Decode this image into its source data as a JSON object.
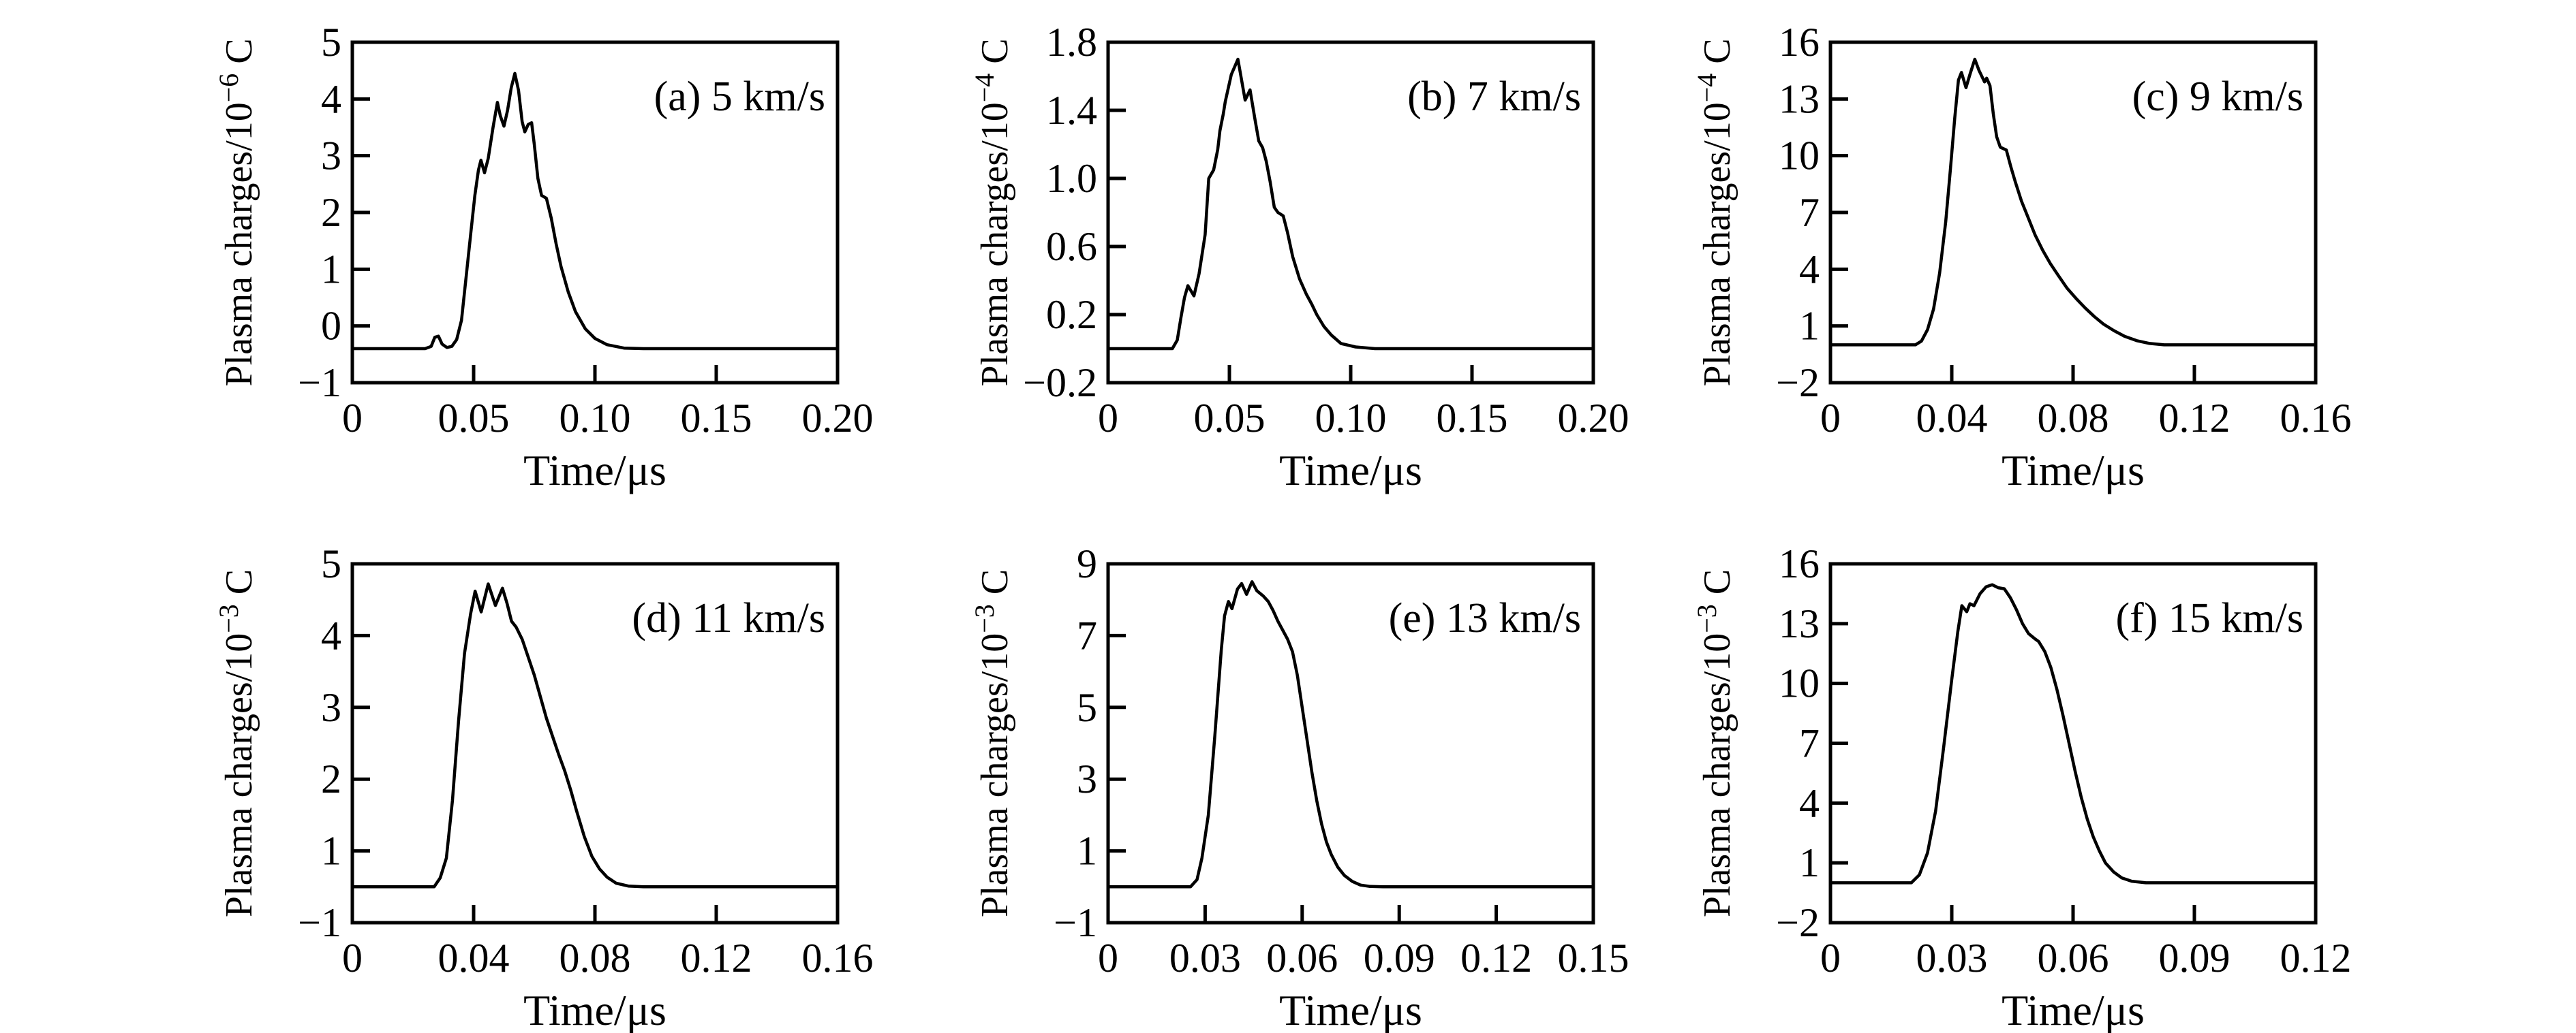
{
  "figure": {
    "background": "#ffffff",
    "ink_color": "#000000",
    "rows": 2,
    "cols": 3,
    "description": "Plasma charges versus time at six impact velocities"
  },
  "chart_data": [
    {
      "type": "line",
      "id": "a",
      "label": "(a)",
      "speed": "5 km/s",
      "title": "(a) 5 km/s",
      "ylabel_prefix": "Plasma charges/10",
      "ylabel_exponent": "−6",
      "ylabel_suffix": "C",
      "ylabel": "Plasma charges/10^−6 C",
      "xlabel": "Time/μs",
      "xlim": [
        0,
        0.2
      ],
      "ylim": [
        -1,
        5
      ],
      "grid": false,
      "legend": "none",
      "xtick_labels": [
        "0",
        "0.05",
        "0.10",
        "0.15",
        "0.20"
      ],
      "xtick_values": [
        0,
        0.05,
        0.1,
        0.15,
        0.2
      ],
      "ytick_labels": [
        "5",
        "4",
        "3",
        "2",
        "1",
        "0",
        "−1"
      ],
      "ytick_values": [
        5,
        4,
        3,
        2,
        1,
        0,
        -1
      ],
      "points": [
        [
          0,
          -0.4
        ],
        [
          0.03,
          -0.4
        ],
        [
          0.0325,
          -0.36
        ],
        [
          0.034,
          -0.2
        ],
        [
          0.0355,
          -0.18
        ],
        [
          0.037,
          -0.32
        ],
        [
          0.039,
          -0.38
        ],
        [
          0.041,
          -0.36
        ],
        [
          0.043,
          -0.24
        ],
        [
          0.045,
          0.1
        ],
        [
          0.047,
          0.9
        ],
        [
          0.049,
          1.7
        ],
        [
          0.0505,
          2.3
        ],
        [
          0.052,
          2.75
        ],
        [
          0.053,
          2.92
        ],
        [
          0.0545,
          2.7
        ],
        [
          0.056,
          2.95
        ],
        [
          0.058,
          3.5
        ],
        [
          0.0598,
          3.94
        ],
        [
          0.061,
          3.7
        ],
        [
          0.0625,
          3.52
        ],
        [
          0.064,
          3.8
        ],
        [
          0.0655,
          4.2
        ],
        [
          0.067,
          4.45
        ],
        [
          0.0685,
          4.15
        ],
        [
          0.07,
          3.6
        ],
        [
          0.0711,
          3.42
        ],
        [
          0.0725,
          3.55
        ],
        [
          0.0739,
          3.58
        ],
        [
          0.075,
          3.2
        ],
        [
          0.0765,
          2.6
        ],
        [
          0.078,
          2.3
        ],
        [
          0.08,
          2.25
        ],
        [
          0.082,
          1.9
        ],
        [
          0.084,
          1.45
        ],
        [
          0.086,
          1.05
        ],
        [
          0.089,
          0.6
        ],
        [
          0.092,
          0.25
        ],
        [
          0.096,
          -0.05
        ],
        [
          0.1,
          -0.22
        ],
        [
          0.105,
          -0.33
        ],
        [
          0.112,
          -0.39
        ],
        [
          0.12,
          -0.4
        ],
        [
          0.2,
          -0.4
        ]
      ]
    },
    {
      "type": "line",
      "id": "b",
      "label": "(b)",
      "speed": "7 km/s",
      "title": "(b) 7 km/s",
      "ylabel_prefix": "Plasma charges/10",
      "ylabel_exponent": "−4",
      "ylabel_suffix": "C",
      "ylabel": "Plasma charges/10^−4 C",
      "xlabel": "Time/μs",
      "xlim": [
        0,
        0.2
      ],
      "ylim": [
        -0.2,
        1.8
      ],
      "grid": false,
      "legend": "none",
      "xtick_labels": [
        "0",
        "0.05",
        "0.10",
        "0.15",
        "0.20"
      ],
      "xtick_values": [
        0,
        0.05,
        0.1,
        0.15,
        0.2
      ],
      "ytick_labels": [
        "1.8",
        "1.4",
        "1.0",
        "0.6",
        "0.2",
        "−0.2"
      ],
      "ytick_values": [
        1.8,
        1.4,
        1.0,
        0.6,
        0.2,
        -0.2
      ],
      "points": [
        [
          0,
          0
        ],
        [
          0.0265,
          0
        ],
        [
          0.0285,
          0.05
        ],
        [
          0.03,
          0.18
        ],
        [
          0.0315,
          0.3
        ],
        [
          0.0329,
          0.37
        ],
        [
          0.0354,
          0.31
        ],
        [
          0.0375,
          0.44
        ],
        [
          0.04,
          0.67
        ],
        [
          0.0415,
          1.0
        ],
        [
          0.0435,
          1.05
        ],
        [
          0.0452,
          1.17
        ],
        [
          0.0461,
          1.28
        ],
        [
          0.0475,
          1.38
        ],
        [
          0.0483,
          1.45
        ],
        [
          0.0508,
          1.61
        ],
        [
          0.0535,
          1.7
        ],
        [
          0.0565,
          1.46
        ],
        [
          0.0585,
          1.52
        ],
        [
          0.0605,
          1.35
        ],
        [
          0.0621,
          1.22
        ],
        [
          0.0637,
          1.18
        ],
        [
          0.0652,
          1.1
        ],
        [
          0.0668,
          0.98
        ],
        [
          0.0685,
          0.83
        ],
        [
          0.07,
          0.8
        ],
        [
          0.0722,
          0.78
        ],
        [
          0.074,
          0.68
        ],
        [
          0.0761,
          0.54
        ],
        [
          0.0789,
          0.41
        ],
        [
          0.0817,
          0.32
        ],
        [
          0.084,
          0.26
        ],
        [
          0.086,
          0.2
        ],
        [
          0.089,
          0.13
        ],
        [
          0.092,
          0.08
        ],
        [
          0.096,
          0.03
        ],
        [
          0.102,
          0.01
        ],
        [
          0.11,
          0
        ],
        [
          0.2,
          0
        ]
      ]
    },
    {
      "type": "line",
      "id": "c",
      "label": "(c)",
      "speed": "9 km/s",
      "title": "(c) 9 km/s",
      "ylabel_prefix": "Plasma charges/10",
      "ylabel_exponent": "−4",
      "ylabel_suffix": "C",
      "ylabel": "Plasma charges/10^−4 C",
      "xlabel": "Time/μs",
      "xlim": [
        0,
        0.16
      ],
      "ylim": [
        -2,
        16
      ],
      "grid": false,
      "legend": "none",
      "xtick_labels": [
        "0",
        "0.04",
        "0.08",
        "0.12",
        "0.16"
      ],
      "xtick_values": [
        0,
        0.04,
        0.08,
        0.12,
        0.16
      ],
      "ytick_labels": [
        "16",
        "13",
        "10",
        "7",
        "4",
        "1",
        "−2"
      ],
      "ytick_values": [
        16,
        13,
        10,
        7,
        4,
        1,
        -2
      ],
      "points": [
        [
          0,
          0
        ],
        [
          0.028,
          0
        ],
        [
          0.03,
          0.2
        ],
        [
          0.032,
          0.8
        ],
        [
          0.034,
          1.9
        ],
        [
          0.036,
          3.8
        ],
        [
          0.038,
          6.5
        ],
        [
          0.0395,
          9.2
        ],
        [
          0.041,
          12
        ],
        [
          0.0422,
          14
        ],
        [
          0.0432,
          14.4
        ],
        [
          0.0447,
          13.6
        ],
        [
          0.046,
          14.3
        ],
        [
          0.0476,
          15.1
        ],
        [
          0.049,
          14.5
        ],
        [
          0.0508,
          13.9
        ],
        [
          0.0515,
          14.1
        ],
        [
          0.0526,
          13.7
        ],
        [
          0.0537,
          12.2
        ],
        [
          0.0548,
          11
        ],
        [
          0.056,
          10.45
        ],
        [
          0.058,
          10.3
        ],
        [
          0.0595,
          9.4
        ],
        [
          0.061,
          8.6
        ],
        [
          0.063,
          7.6
        ],
        [
          0.065,
          6.8
        ],
        [
          0.0675,
          5.8
        ],
        [
          0.07,
          5
        ],
        [
          0.0725,
          4.3
        ],
        [
          0.075,
          3.7
        ],
        [
          0.078,
          3
        ],
        [
          0.081,
          2.45
        ],
        [
          0.084,
          1.95
        ],
        [
          0.087,
          1.5
        ],
        [
          0.09,
          1.1
        ],
        [
          0.0935,
          0.75
        ],
        [
          0.097,
          0.45
        ],
        [
          0.101,
          0.22
        ],
        [
          0.105,
          0.08
        ],
        [
          0.11,
          0
        ],
        [
          0.16,
          0
        ]
      ]
    },
    {
      "type": "line",
      "id": "d",
      "label": "(d)",
      "speed": "11 km/s",
      "title": "(d) 11 km/s",
      "ylabel_prefix": "Plasma charges/10",
      "ylabel_exponent": "−3",
      "ylabel_suffix": "C",
      "ylabel": "Plasma charges/10^−3 C",
      "xlabel": "Time/μs",
      "xlim": [
        0,
        0.16
      ],
      "ylim": [
        -1,
        5
      ],
      "grid": false,
      "legend": "none",
      "xtick_labels": [
        "0",
        "0.04",
        "0.08",
        "0.12",
        "0.16"
      ],
      "xtick_values": [
        0,
        0.04,
        0.08,
        0.12,
        0.16
      ],
      "ytick_labels": [
        "5",
        "4",
        "3",
        "2",
        "1",
        "−1"
      ],
      "ytick_values": [
        5,
        4,
        3,
        2,
        1,
        -1
      ],
      "points": [
        [
          0,
          0
        ],
        [
          0.027,
          0
        ],
        [
          0.029,
          0.25
        ],
        [
          0.031,
          0.8
        ],
        [
          0.033,
          1.7
        ],
        [
          0.035,
          2.8
        ],
        [
          0.037,
          3.75
        ],
        [
          0.039,
          4.3
        ],
        [
          0.0405,
          4.62
        ],
        [
          0.0425,
          4.33
        ],
        [
          0.0448,
          4.72
        ],
        [
          0.0472,
          4.42
        ],
        [
          0.0495,
          4.66
        ],
        [
          0.051,
          4.45
        ],
        [
          0.0525,
          4.2
        ],
        [
          0.054,
          4.12
        ],
        [
          0.056,
          3.95
        ],
        [
          0.058,
          3.7
        ],
        [
          0.06,
          3.45
        ],
        [
          0.062,
          3.15
        ],
        [
          0.064,
          2.85
        ],
        [
          0.066,
          2.6
        ],
        [
          0.068,
          2.35
        ],
        [
          0.07,
          2.12
        ],
        [
          0.072,
          1.85
        ],
        [
          0.074,
          1.55
        ],
        [
          0.0765,
          1.2
        ],
        [
          0.079,
          0.85
        ],
        [
          0.0815,
          0.5
        ],
        [
          0.084,
          0.27
        ],
        [
          0.087,
          0.1
        ],
        [
          0.091,
          0.02
        ],
        [
          0.096,
          0
        ],
        [
          0.16,
          0
        ]
      ]
    },
    {
      "type": "line",
      "id": "e",
      "label": "(e)",
      "speed": "13 km/s",
      "title": "(e) 13 km/s",
      "ylabel_prefix": "Plasma charges/10",
      "ylabel_exponent": "−3",
      "ylabel_suffix": "C",
      "ylabel": "Plasma charges/10^−3 C",
      "xlabel": "Time/μs",
      "xlim": [
        0,
        0.15
      ],
      "ylim": [
        -1,
        9
      ],
      "grid": false,
      "legend": "none",
      "xtick_labels": [
        "0",
        "0.03",
        "0.06",
        "0.09",
        "0.12",
        "0.15"
      ],
      "xtick_values": [
        0,
        0.03,
        0.06,
        0.09,
        0.12,
        0.15
      ],
      "ytick_labels": [
        "9",
        "7",
        "5",
        "3",
        "1",
        "−1"
      ],
      "ytick_values": [
        9,
        7,
        5,
        3,
        1,
        -1
      ],
      "points": [
        [
          0,
          0
        ],
        [
          0.0255,
          0
        ],
        [
          0.0275,
          0.2
        ],
        [
          0.029,
          0.8
        ],
        [
          0.031,
          2
        ],
        [
          0.033,
          4.2
        ],
        [
          0.035,
          6.6
        ],
        [
          0.036,
          7.55
        ],
        [
          0.0372,
          7.95
        ],
        [
          0.0383,
          7.75
        ],
        [
          0.04,
          8.3
        ],
        [
          0.0413,
          8.45
        ],
        [
          0.0428,
          8.15
        ],
        [
          0.0445,
          8.5
        ],
        [
          0.046,
          8.25
        ],
        [
          0.048,
          8.1
        ],
        [
          0.0495,
          7.95
        ],
        [
          0.051,
          7.7
        ],
        [
          0.0525,
          7.4
        ],
        [
          0.054,
          7.15
        ],
        [
          0.0555,
          6.9
        ],
        [
          0.057,
          6.55
        ],
        [
          0.0585,
          5.9
        ],
        [
          0.06,
          5
        ],
        [
          0.0615,
          4.1
        ],
        [
          0.063,
          3.2
        ],
        [
          0.0645,
          2.4
        ],
        [
          0.066,
          1.75
        ],
        [
          0.0675,
          1.25
        ],
        [
          0.069,
          0.9
        ],
        [
          0.071,
          0.55
        ],
        [
          0.073,
          0.32
        ],
        [
          0.0755,
          0.15
        ],
        [
          0.078,
          0.05
        ],
        [
          0.081,
          0.01
        ],
        [
          0.085,
          0
        ],
        [
          0.15,
          0
        ]
      ]
    },
    {
      "type": "line",
      "id": "f",
      "label": "(f)",
      "speed": "15 km/s",
      "title": "(f) 15 km/s",
      "ylabel_prefix": "Plasma charges/10",
      "ylabel_exponent": "−3",
      "ylabel_suffix": "C",
      "ylabel": "Plasma charges/10^−3 C",
      "xlabel": "Time/μs",
      "xlim": [
        0,
        0.12
      ],
      "ylim": [
        -2,
        16
      ],
      "grid": false,
      "legend": "none",
      "xtick_labels": [
        "0",
        "0.03",
        "0.06",
        "0.09",
        "0.12"
      ],
      "xtick_values": [
        0,
        0.03,
        0.06,
        0.09,
        0.12
      ],
      "ytick_labels": [
        "16",
        "13",
        "10",
        "7",
        "4",
        "1",
        "−2"
      ],
      "ytick_values": [
        16,
        13,
        10,
        7,
        4,
        1,
        -2
      ],
      "points": [
        [
          0,
          0
        ],
        [
          0.02,
          0
        ],
        [
          0.022,
          0.4
        ],
        [
          0.024,
          1.5
        ],
        [
          0.026,
          3.6
        ],
        [
          0.028,
          6.8
        ],
        [
          0.03,
          10.2
        ],
        [
          0.0315,
          12.6
        ],
        [
          0.0325,
          13.9
        ],
        [
          0.0337,
          13.6
        ],
        [
          0.0345,
          14
        ],
        [
          0.0355,
          13.9
        ],
        [
          0.037,
          14.5
        ],
        [
          0.0385,
          14.85
        ],
        [
          0.04,
          14.95
        ],
        [
          0.0415,
          14.8
        ],
        [
          0.043,
          14.75
        ],
        [
          0.0445,
          14.3
        ],
        [
          0.046,
          13.7
        ],
        [
          0.0475,
          13
        ],
        [
          0.049,
          12.5
        ],
        [
          0.0505,
          12.25
        ],
        [
          0.0515,
          12.1
        ],
        [
          0.053,
          11.6
        ],
        [
          0.0545,
          10.8
        ],
        [
          0.056,
          9.7
        ],
        [
          0.0575,
          8.4
        ],
        [
          0.059,
          7
        ],
        [
          0.0605,
          5.6
        ],
        [
          0.062,
          4.3
        ],
        [
          0.0635,
          3.2
        ],
        [
          0.065,
          2.3
        ],
        [
          0.0665,
          1.6
        ],
        [
          0.068,
          1
        ],
        [
          0.07,
          0.55
        ],
        [
          0.072,
          0.25
        ],
        [
          0.0745,
          0.08
        ],
        [
          0.078,
          0
        ],
        [
          0.12,
          0
        ]
      ]
    }
  ]
}
